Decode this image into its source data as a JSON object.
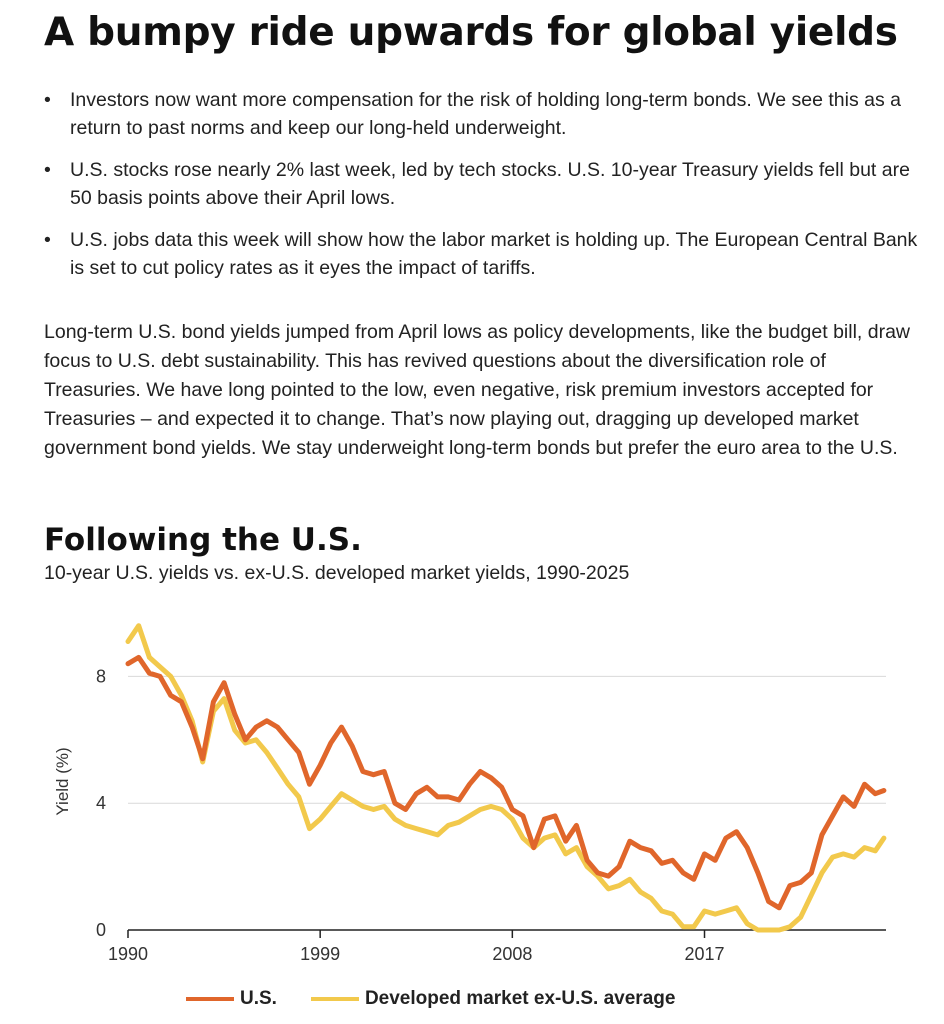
{
  "headline": "A bumpy ride upwards for global yields",
  "bullet_glyph": "•",
  "bullets": [
    "Investors now want more compensation for the risk of holding long-term bonds. We see this as a return to past norms and keep our long-held underweight.",
    "U.S. stocks rose nearly 2% last week, led by tech stocks. U.S. 10-year Treasury yields fell but are 50 basis points above their April lows.",
    "U.S. jobs data this week will show how the labor market is holding up. The European Central Bank is set to cut policy rates as it eyes the impact of tariffs."
  ],
  "paragraph": "Long-term U.S. bond yields jumped from April lows as policy developments, like the budget bill, draw focus to U.S. debt sustainability. This has revived questions about the diversification role of Treasuries. We have long pointed to the low, even negative, risk premium investors accepted for Treasuries – and expected it to change. That’s now playing out, dragging up developed market government bond yields. We stay underweight long-term bonds but prefer the euro area to the U.S.",
  "chart_data": {
    "type": "line",
    "title": "Following the U.S.",
    "subtitle": "10-year U.S. yields vs. ex-U.S. developed market yields, 1990-2025",
    "xlabel": "",
    "ylabel": "Yield (%)",
    "xlim": [
      1990,
      2025.5
    ],
    "ylim": [
      0,
      10
    ],
    "x_ticks": [
      "1990",
      "1999",
      "2008",
      "2017"
    ],
    "x_tick_values": [
      1990,
      1999,
      2008,
      2017
    ],
    "y_ticks": [
      "0",
      "4",
      "8"
    ],
    "y_tick_values": [
      0,
      4,
      8
    ],
    "grid": "horizontal",
    "legend_position": "bottom",
    "x": [
      1990,
      1990.5,
      1991,
      1991.5,
      1992,
      1992.5,
      1993,
      1993.5,
      1994,
      1994.5,
      1995,
      1995.5,
      1996,
      1996.5,
      1997,
      1997.5,
      1998,
      1998.5,
      1999,
      1999.5,
      2000,
      2000.5,
      2001,
      2001.5,
      2002,
      2002.5,
      2003,
      2003.5,
      2004,
      2004.5,
      2005,
      2005.5,
      2006,
      2006.5,
      2007,
      2007.5,
      2008,
      2008.5,
      2009,
      2009.5,
      2010,
      2010.5,
      2011,
      2011.5,
      2012,
      2012.5,
      2013,
      2013.5,
      2014,
      2014.5,
      2015,
      2015.5,
      2016,
      2016.5,
      2017,
      2017.5,
      2018,
      2018.5,
      2019,
      2019.5,
      2020,
      2020.5,
      2021,
      2021.5,
      2022,
      2022.5,
      2023,
      2023.5,
      2024,
      2024.5,
      2025,
      2025.4
    ],
    "series": [
      {
        "name": "U.S.",
        "color": "#e0662b",
        "values": [
          8.4,
          8.6,
          8.1,
          8.0,
          7.4,
          7.2,
          6.4,
          5.4,
          7.2,
          7.8,
          6.8,
          6.0,
          6.4,
          6.6,
          6.4,
          6.0,
          5.6,
          4.6,
          5.2,
          5.9,
          6.4,
          5.8,
          5.0,
          4.9,
          5.0,
          4.0,
          3.8,
          4.3,
          4.5,
          4.2,
          4.2,
          4.1,
          4.6,
          5.0,
          4.8,
          4.5,
          3.8,
          3.6,
          2.6,
          3.5,
          3.6,
          2.8,
          3.3,
          2.2,
          1.8,
          1.7,
          2.0,
          2.8,
          2.6,
          2.5,
          2.1,
          2.2,
          1.8,
          1.6,
          2.4,
          2.2,
          2.9,
          3.1,
          2.6,
          1.8,
          0.9,
          0.7,
          1.4,
          1.5,
          1.8,
          3.0,
          3.6,
          4.2,
          3.9,
          4.6,
          4.3,
          4.4
        ]
      },
      {
        "name": "Developed market ex-U.S. average",
        "color": "#f2c94c",
        "values": [
          9.1,
          9.6,
          8.6,
          8.3,
          8.0,
          7.4,
          6.6,
          5.3,
          6.9,
          7.3,
          6.3,
          5.9,
          6.0,
          5.6,
          5.1,
          4.6,
          4.2,
          3.2,
          3.5,
          3.9,
          4.3,
          4.1,
          3.9,
          3.8,
          3.9,
          3.5,
          3.3,
          3.2,
          3.1,
          3.0,
          3.3,
          3.4,
          3.6,
          3.8,
          3.9,
          3.8,
          3.5,
          2.9,
          2.6,
          2.9,
          3.0,
          2.4,
          2.6,
          2.0,
          1.7,
          1.3,
          1.4,
          1.6,
          1.2,
          1.0,
          0.6,
          0.5,
          0.1,
          0.1,
          0.6,
          0.5,
          0.6,
          0.7,
          0.2,
          -0.1,
          -0.2,
          -0.2,
          0.1,
          0.4,
          1.1,
          1.8,
          2.3,
          2.4,
          2.3,
          2.6,
          2.5,
          2.9
        ]
      }
    ]
  }
}
